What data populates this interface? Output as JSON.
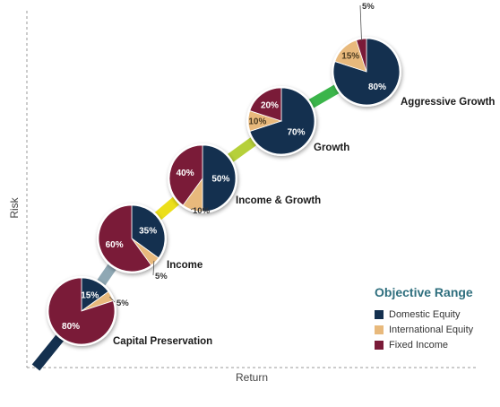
{
  "chart_data": {
    "type": "pie",
    "xlabel": "Return",
    "ylabel": "Risk",
    "legend_title": "Objective Range",
    "legend_position": "bottom-right",
    "series_names": [
      "Domestic Equity",
      "International Equity",
      "Fixed Income"
    ],
    "colors": {
      "domestic": "#14304f",
      "international": "#e8b97c",
      "fixed": "#7a1b38",
      "axis": "#999999"
    },
    "portfolios": [
      {
        "name": "Capital Preservation",
        "slices": [
          {
            "series": "Domestic Equity",
            "value": 15,
            "label": "15%"
          },
          {
            "series": "International Equity",
            "value": 5,
            "label": "5%"
          },
          {
            "series": "Fixed Income",
            "value": 80,
            "label": "80%"
          }
        ]
      },
      {
        "name": "Income",
        "slices": [
          {
            "series": "Domestic Equity",
            "value": 35,
            "label": "35%"
          },
          {
            "series": "International Equity",
            "value": 5,
            "label": "5%"
          },
          {
            "series": "Fixed Income",
            "value": 60,
            "label": "60%"
          }
        ]
      },
      {
        "name": "Income & Growth",
        "slices": [
          {
            "series": "Domestic Equity",
            "value": 50,
            "label": "50%"
          },
          {
            "series": "International Equity",
            "value": 10,
            "label": "10%"
          },
          {
            "series": "Fixed Income",
            "value": 40,
            "label": "40%"
          }
        ]
      },
      {
        "name": "Growth",
        "slices": [
          {
            "series": "Domestic Equity",
            "value": 70,
            "label": "70%"
          },
          {
            "series": "International Equity",
            "value": 10,
            "label": "10%"
          },
          {
            "series": "Fixed Income",
            "value": 20,
            "label": "20%"
          }
        ]
      },
      {
        "name": "Aggressive Growth",
        "slices": [
          {
            "series": "Domestic Equity",
            "value": 80,
            "label": "80%"
          },
          {
            "series": "International Equity",
            "value": 15,
            "label": "15%"
          },
          {
            "series": "Fixed Income",
            "value": 5,
            "label": "5%"
          }
        ]
      }
    ]
  }
}
